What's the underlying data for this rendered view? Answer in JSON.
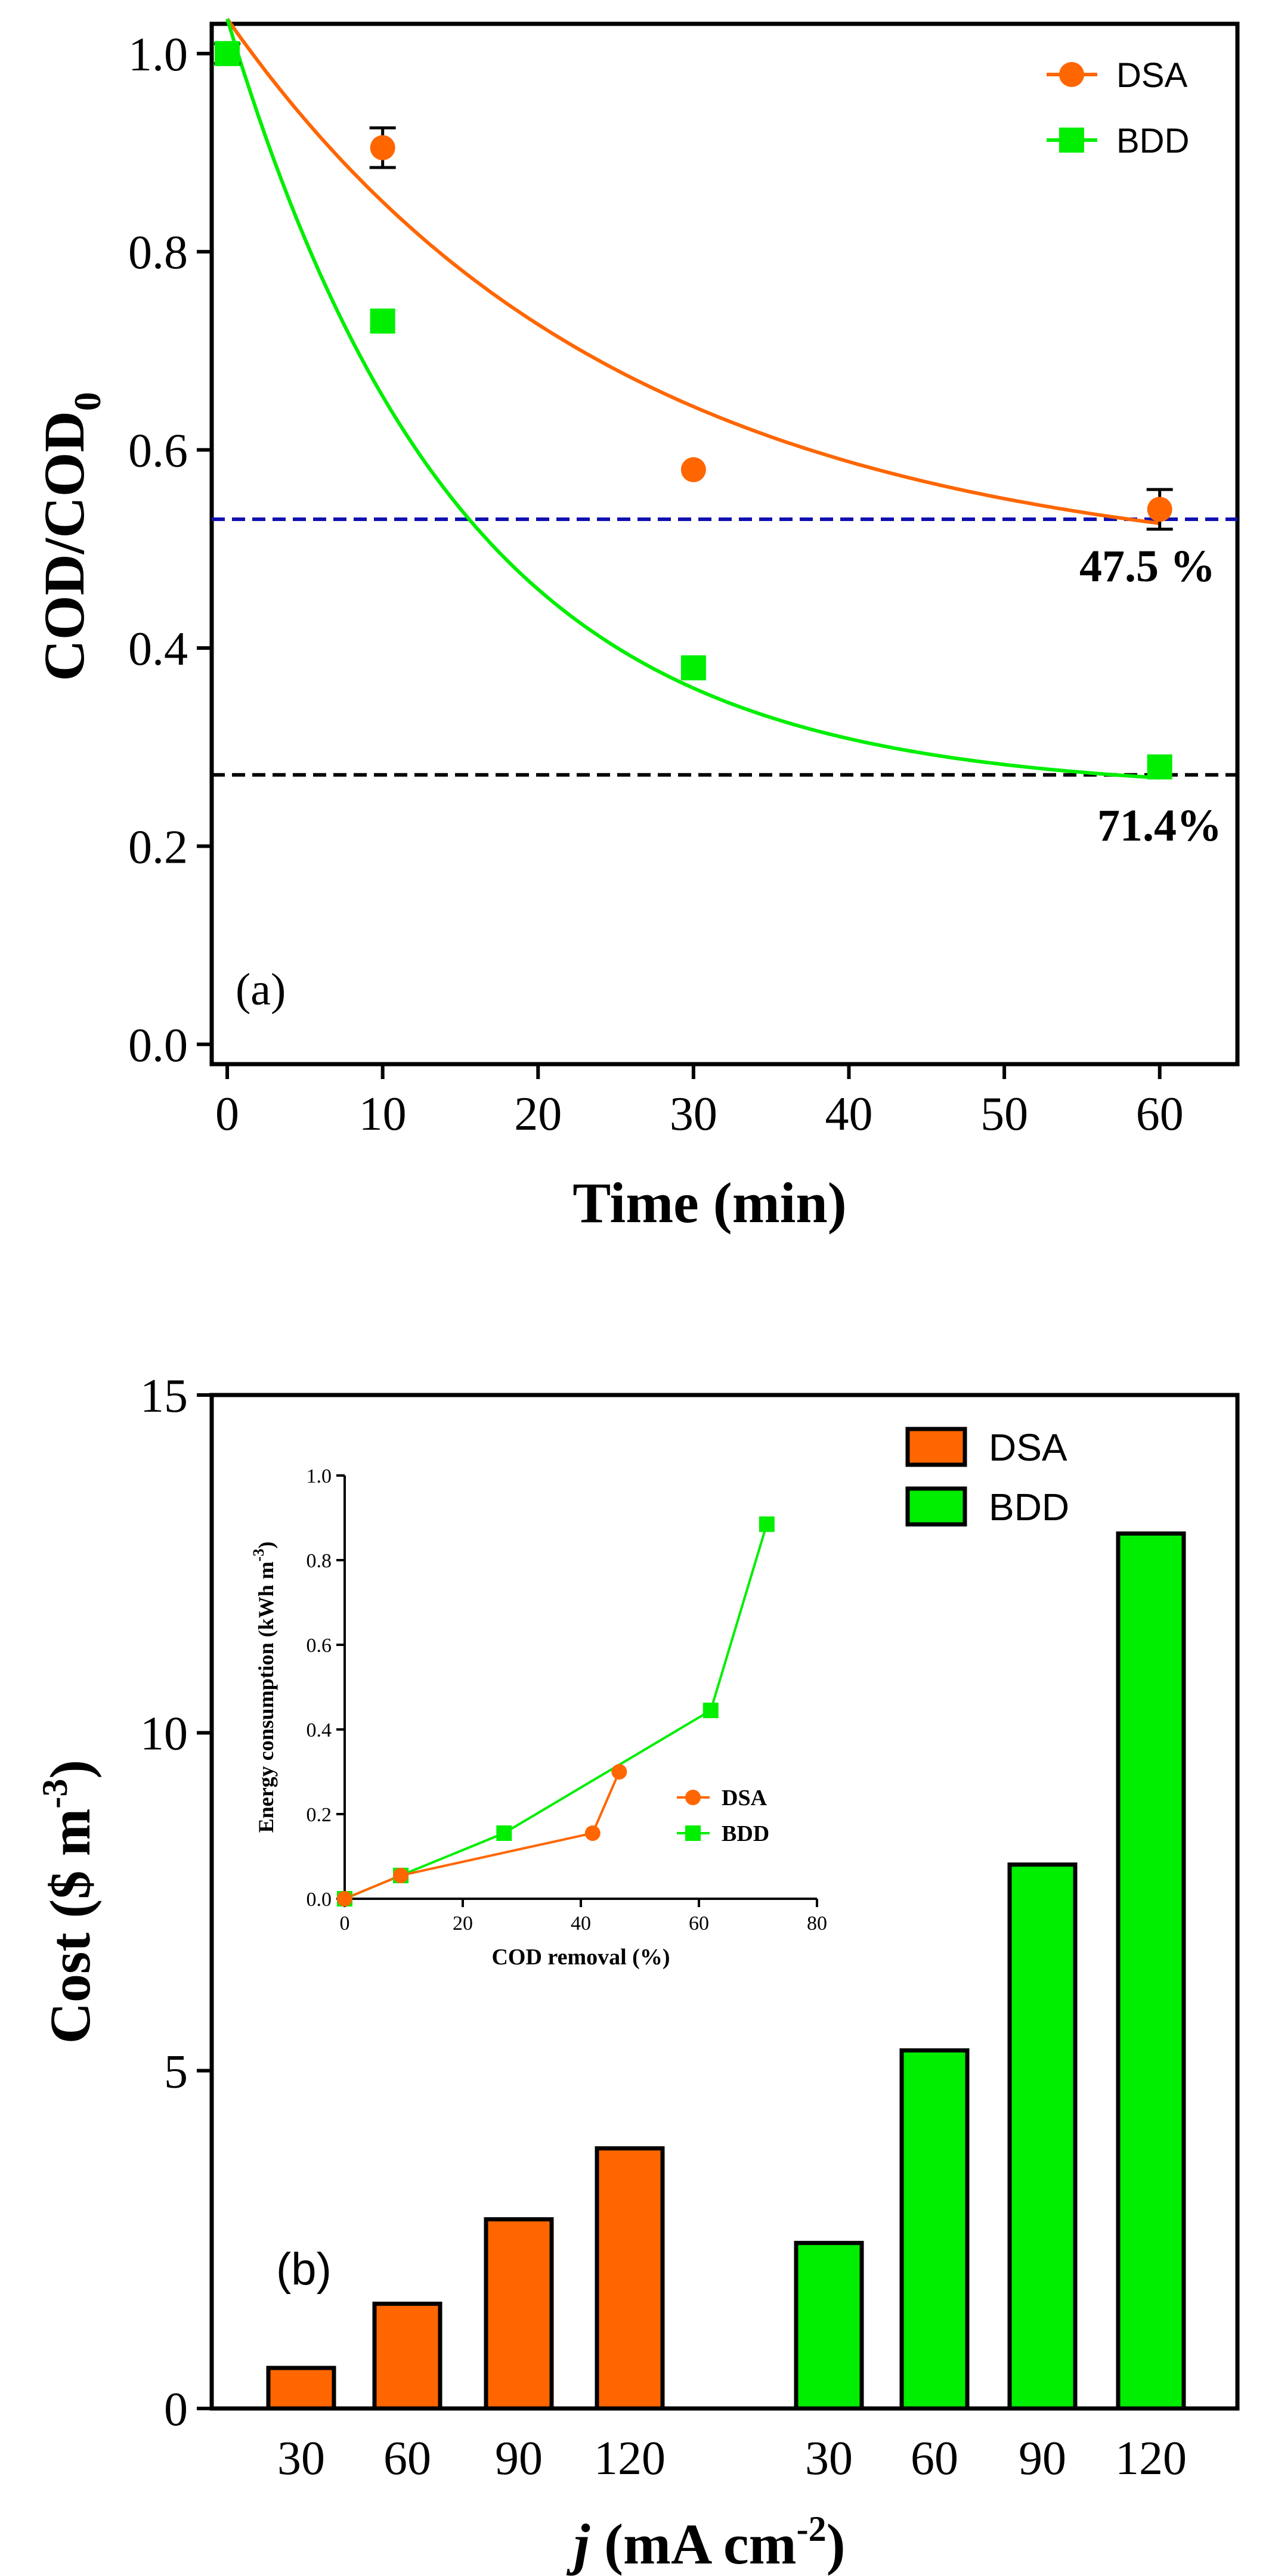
{
  "chart_data": [
    {
      "panel": "(a)",
      "type": "scatter",
      "xlabel": "Time (min)",
      "ylabel_main": "COD/COD",
      "ylabel_sub": "0",
      "xlim": [
        -1,
        65
      ],
      "ylim": [
        -0.02,
        1.03
      ],
      "xticks": [
        0,
        10,
        20,
        30,
        40,
        50,
        60
      ],
      "yticks": [
        0.0,
        0.2,
        0.4,
        0.6,
        0.8,
        1.0
      ],
      "series": [
        {
          "name": "DSA",
          "color": "#ff6600",
          "marker": "circle",
          "x": [
            0,
            10,
            30,
            60
          ],
          "y": [
            1.0,
            0.905,
            0.58,
            0.54
          ],
          "yerr": [
            0.01,
            0.02,
            0.0,
            0.02
          ],
          "fit": {
            "plateau": 0.475,
            "k": 0.04
          }
        },
        {
          "name": "BDD",
          "color": "#00ee00",
          "marker": "square",
          "x": [
            0,
            10,
            30,
            60
          ],
          "y": [
            1.0,
            0.73,
            0.38,
            0.28
          ],
          "fit": {
            "plateau": 0.255,
            "k": 0.067
          }
        }
      ],
      "hlines": [
        {
          "y": 0.53,
          "color": "#1010b0"
        },
        {
          "y": 0.272,
          "color": "#000000"
        }
      ],
      "annotations": [
        "47.5 %",
        "71.4%"
      ]
    },
    {
      "panel": "(b)",
      "type": "bar",
      "xlabel_italic": "j",
      "xlabel_rest": " (mA cm",
      "xlabel_sup": "-2",
      "xlabel_close": ")",
      "ylabel_main": "Cost ($ m",
      "ylabel_sup": "-3",
      "ylabel_close": ")",
      "ylim": [
        0,
        15
      ],
      "yticks": [
        0,
        5,
        10,
        15
      ],
      "series": [
        {
          "name": "DSA",
          "color": "#ff6600",
          "categories": [
            "30",
            "60",
            "90",
            "120"
          ],
          "values": [
            0.6,
            1.55,
            2.8,
            3.85
          ]
        },
        {
          "name": "BDD",
          "color": "#00ee00",
          "categories": [
            "30",
            "60",
            "90",
            "120"
          ],
          "values": [
            2.45,
            5.3,
            8.05,
            12.95
          ]
        }
      ],
      "inset": {
        "type": "line",
        "xlabel": "COD removal (%)",
        "ylabel": "Energy consumption (kWh m",
        "ylabel_sup": "-3",
        "ylabel_close": ")",
        "xlim": [
          0,
          80
        ],
        "ylim": [
          0,
          1.0
        ],
        "xticks": [
          0,
          20,
          40,
          60,
          80
        ],
        "yticks": [
          0.0,
          0.2,
          0.4,
          0.6,
          0.8,
          1.0
        ],
        "series": [
          {
            "name": "DSA",
            "color": "#ff6600",
            "marker": "circle",
            "x": [
              0,
              9.5,
              42,
              46.5
            ],
            "y": [
              0.0,
              0.055,
              0.155,
              0.3
            ]
          },
          {
            "name": "BDD",
            "color": "#00ee00",
            "marker": "square",
            "x": [
              0,
              9.5,
              27,
              62,
              71.5
            ],
            "y": [
              0.0,
              0.055,
              0.155,
              0.445,
              0.885
            ]
          }
        ]
      }
    }
  ]
}
